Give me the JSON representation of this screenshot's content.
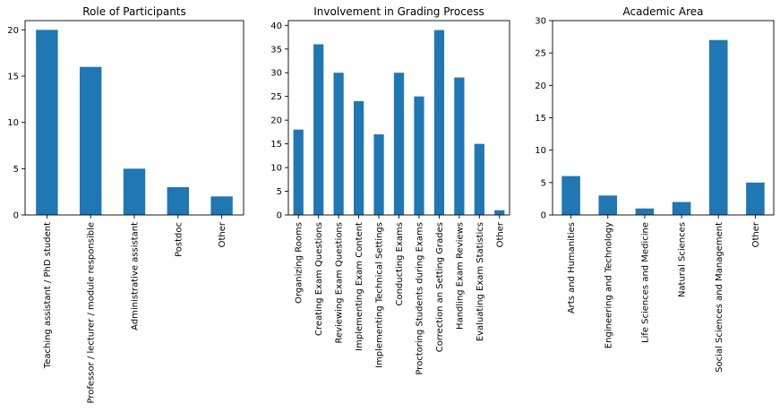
{
  "colors": {
    "bar": "#1f77b4",
    "axis": "#000000",
    "background": "#ffffff"
  },
  "chart_data": [
    {
      "type": "bar",
      "title": "Role of Participants",
      "xlabel": "",
      "ylabel": "",
      "categories": [
        "Teaching assistant / PhD student",
        "Professor / lecturer / module responsible",
        "Administrative assistant",
        "Postdoc",
        "Other"
      ],
      "values": [
        20,
        16,
        5,
        3,
        2
      ],
      "ylim": [
        0,
        21
      ],
      "yticks": [
        0,
        5,
        10,
        15,
        20
      ],
      "grid": false,
      "legend": "none"
    },
    {
      "type": "bar",
      "title": "Involvement in Grading Process",
      "xlabel": "",
      "ylabel": "",
      "categories": [
        "Organizing Rooms",
        "Creating Exam Questions",
        "Reviewing Exam Questions",
        "Implementing Exam Content",
        "Implementing Technical Settings",
        "Conducting Exams",
        "Proctoring Students during Exams",
        "Correction an Setting Grades",
        "Handling Exam Reviews",
        "Evaluating Exam Statistics",
        "Other"
      ],
      "values": [
        18,
        36,
        30,
        24,
        17,
        30,
        25,
        39,
        29,
        15,
        1
      ],
      "ylim": [
        0,
        41
      ],
      "yticks": [
        0,
        5,
        10,
        15,
        20,
        25,
        30,
        35,
        40
      ],
      "grid": false,
      "legend": "none"
    },
    {
      "type": "bar",
      "title": "Academic Area",
      "xlabel": "",
      "ylabel": "",
      "categories": [
        "Arts and Humanities",
        "Engineering and Technology",
        "Life Sciences and Medicine",
        "Natural Sciences",
        "Social Sciences and Management",
        "Other"
      ],
      "values": [
        6,
        3,
        1,
        2,
        27,
        5
      ],
      "ylim": [
        0,
        30
      ],
      "yticks": [
        0,
        5,
        10,
        15,
        20,
        25,
        30
      ],
      "grid": false,
      "legend": "none"
    }
  ]
}
